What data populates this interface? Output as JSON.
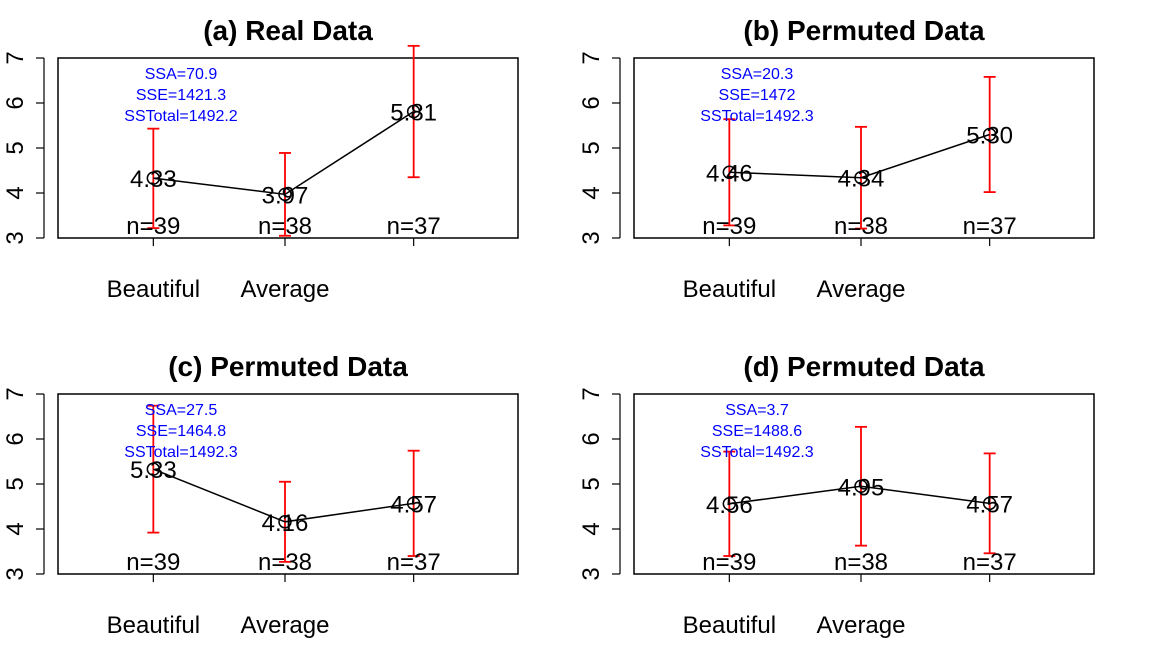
{
  "chart_data": [
    {
      "type": "line",
      "title": "(a) Real Data",
      "categories": [
        "Beautiful",
        "Average",
        ""
      ],
      "category_labels_shown": [
        "Beautiful",
        "Average"
      ],
      "ylim": [
        3,
        7
      ],
      "yticks": [
        3,
        4,
        5,
        6,
        7
      ],
      "means": [
        4.33,
        3.97,
        5.81
      ],
      "mean_labels": [
        "4.33",
        "3.97",
        "5.81"
      ],
      "error_bars": [
        [
          3.22,
          5.43
        ],
        [
          3.05,
          4.89
        ],
        [
          4.35,
          7.27
        ]
      ],
      "n_labels": [
        "n=39",
        "n=38",
        "n=37"
      ],
      "stats": [
        "SSA=70.9",
        "SSE=1421.3",
        "SSTotal=1492.2"
      ]
    },
    {
      "type": "line",
      "title": "(b) Permuted Data",
      "categories": [
        "Beautiful",
        "Average",
        ""
      ],
      "category_labels_shown": [
        "Beautiful",
        "Average"
      ],
      "ylim": [
        3,
        7
      ],
      "yticks": [
        3,
        4,
        5,
        6,
        7
      ],
      "means": [
        4.46,
        4.34,
        5.3
      ],
      "mean_labels": [
        "4.46",
        "4.34",
        "5.30"
      ],
      "error_bars": [
        [
          3.28,
          5.64
        ],
        [
          3.21,
          5.47
        ],
        [
          4.02,
          6.58
        ]
      ],
      "n_labels": [
        "n=39",
        "n=38",
        "n=37"
      ],
      "stats": [
        "SSA=20.3",
        "SSE=1472",
        "SSTotal=1492.3"
      ]
    },
    {
      "type": "line",
      "title": "(c) Permuted Data",
      "categories": [
        "Beautiful",
        "Average",
        ""
      ],
      "category_labels_shown": [
        "Beautiful",
        "Average"
      ],
      "ylim": [
        3,
        7
      ],
      "yticks": [
        3,
        4,
        5,
        6,
        7
      ],
      "means": [
        5.33,
        4.16,
        4.57
      ],
      "mean_labels": [
        "5.33",
        "4.16",
        "4.57"
      ],
      "error_bars": [
        [
          3.92,
          6.74
        ],
        [
          3.27,
          5.05
        ],
        [
          3.4,
          5.74
        ]
      ],
      "n_labels": [
        "n=39",
        "n=38",
        "n=37"
      ],
      "stats": [
        "SSA=27.5",
        "SSE=1464.8",
        "SSTotal=1492.3"
      ]
    },
    {
      "type": "line",
      "title": "(d) Permuted Data",
      "categories": [
        "Beautiful",
        "Average",
        ""
      ],
      "category_labels_shown": [
        "Beautiful",
        "Average"
      ],
      "ylim": [
        3,
        7
      ],
      "yticks": [
        3,
        4,
        5,
        6,
        7
      ],
      "means": [
        4.56,
        4.95,
        4.57
      ],
      "mean_labels": [
        "4.56",
        "4.95",
        "4.57"
      ],
      "error_bars": [
        [
          3.4,
          5.72
        ],
        [
          3.63,
          6.27
        ],
        [
          3.46,
          5.68
        ]
      ],
      "n_labels": [
        "n=39",
        "n=38",
        "n=37"
      ],
      "stats": [
        "SSA=3.7",
        "SSE=1488.6",
        "SSTotal=1492.3"
      ]
    }
  ],
  "colors": {
    "error_bar": "#ff0000",
    "stats_text": "#0000ff",
    "line": "#000000"
  }
}
